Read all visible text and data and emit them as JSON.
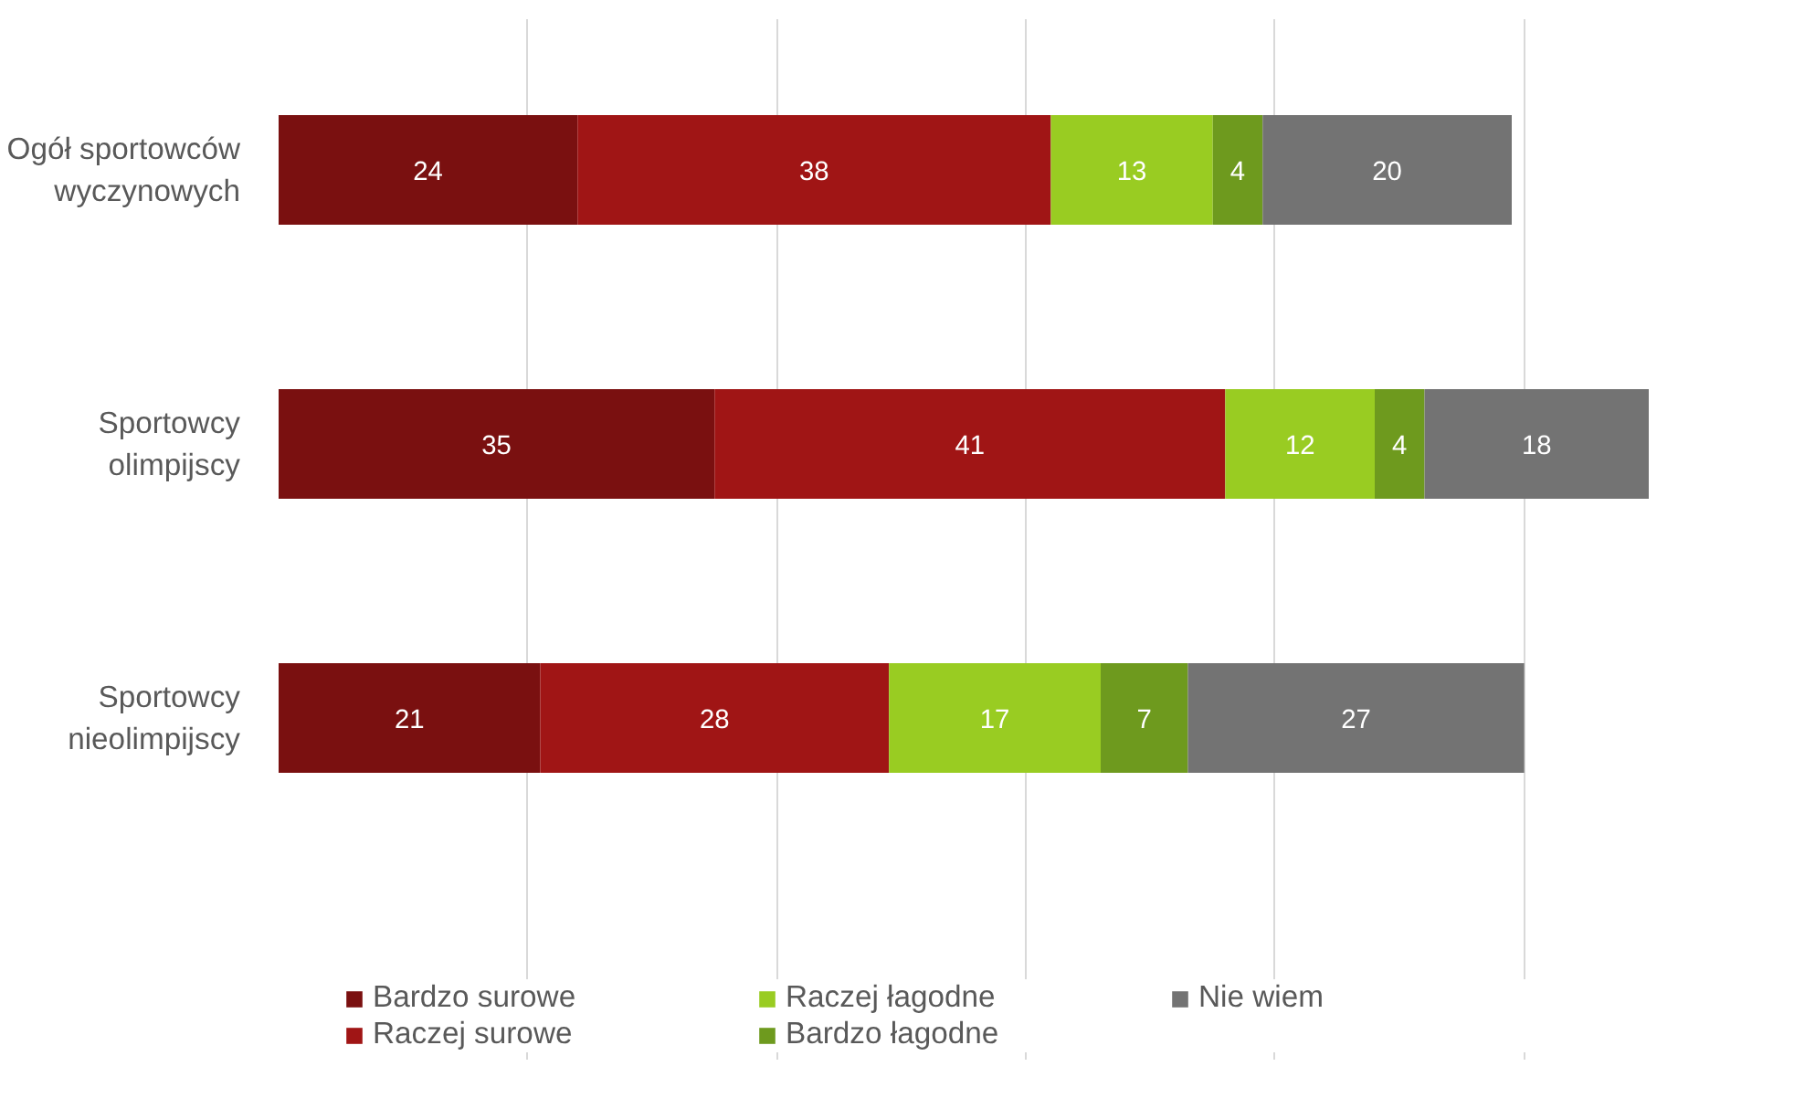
{
  "chart_data": {
    "type": "bar",
    "orientation": "horizontal",
    "stacked": true,
    "data_labels": true,
    "grid": "x",
    "legend": "bottom",
    "tick_labels": "y",
    "categories": [
      "Ogół sportowców wyczynowych",
      "Sportowcy olimpijscy",
      "Sportowcy nieolimpijscy"
    ],
    "xlim": [
      0,
      110
    ],
    "series": [
      {
        "name": "Bardzo surowe",
        "color": "#7a1010",
        "values": [
          24,
          35,
          21
        ]
      },
      {
        "name": "Raczej surowe",
        "color": "#a01515",
        "values": [
          38,
          41,
          28
        ]
      },
      {
        "name": "Raczej łagodne",
        "color": "#99cc22",
        "values": [
          13,
          12,
          17
        ]
      },
      {
        "name": "Bardzo łagodne",
        "color": "#6e9a1e",
        "values": [
          4,
          4,
          7
        ]
      },
      {
        "name": "Nie wiem",
        "color": "#737373",
        "values": [
          20,
          18,
          27
        ]
      }
    ]
  }
}
